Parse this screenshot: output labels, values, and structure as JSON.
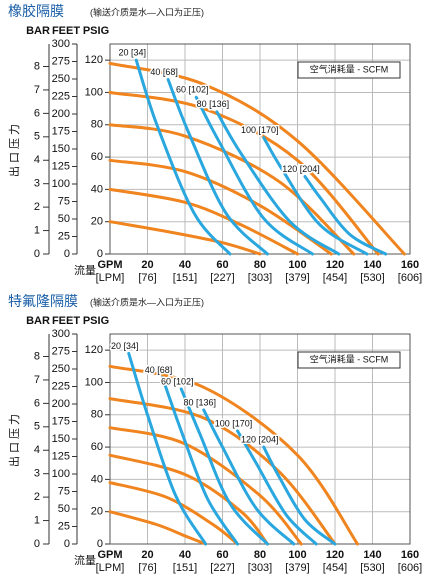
{
  "chart_data": [
    {
      "type": "line",
      "title": "橡胶隔膜",
      "subtitle": "(输送介质是水—入口为正压)",
      "y_axis_label": "出口压力",
      "x_axis_label": "流量",
      "x_unit": "GPM",
      "x2_unit": "[LPM]",
      "legend_title": "空气消耗量 - SCFM",
      "y_bar": {
        "label": "BAR",
        "lim": [
          0,
          8.96
        ],
        "ticks": [
          0,
          1,
          2,
          3,
          4,
          5,
          6,
          7,
          8
        ]
      },
      "y_feet": {
        "label": "FEET",
        "lim": [
          0,
          300
        ],
        "ticks": [
          0,
          25,
          50,
          75,
          100,
          125,
          150,
          175,
          200,
          225,
          250,
          275,
          300
        ]
      },
      "y_label": "PSIG",
      "ylim": [
        0,
        130
      ],
      "yticks": [
        0,
        20,
        40,
        60,
        80,
        100,
        120
      ],
      "xlim": [
        0,
        160
      ],
      "xticks": [
        20,
        40,
        60,
        80,
        100,
        120,
        140,
        160
      ],
      "x2ticks": [
        {
          "value": 20,
          "label": "[76]"
        },
        {
          "value": 40,
          "label": "[151]"
        },
        {
          "value": 60,
          "label": "[227]"
        },
        {
          "value": 80,
          "label": "[303]"
        },
        {
          "value": 100,
          "label": "[379]"
        },
        {
          "value": 120,
          "label": "[454]"
        },
        {
          "value": 140,
          "label": "[530]"
        },
        {
          "value": 160,
          "label": "[606]"
        }
      ],
      "series": [
        {
          "color": "#f0841e",
          "x": [
            0,
            50,
            100,
            157
          ],
          "values": [
            118,
            105,
            70,
            0
          ]
        },
        {
          "color": "#f0841e",
          "x": [
            0,
            50,
            100,
            143
          ],
          "values": [
            100,
            90,
            58,
            0
          ]
        },
        {
          "color": "#f0841e",
          "x": [
            0,
            40,
            90,
            130
          ],
          "values": [
            80,
            73,
            45,
            0
          ]
        },
        {
          "color": "#f0841e",
          "x": [
            0,
            40,
            80,
            118
          ],
          "values": [
            58,
            51,
            30,
            0
          ]
        },
        {
          "color": "#f0841e",
          "x": [
            0,
            40,
            70,
            100
          ],
          "values": [
            40,
            32,
            18,
            0
          ]
        },
        {
          "color": "#f0841e",
          "x": [
            0,
            30,
            60,
            80
          ],
          "values": [
            20,
            14,
            7,
            0
          ]
        },
        {
          "name": "20 [34]",
          "color": "#2aa7de",
          "x": [
            14,
            25,
            45,
            64
          ],
          "values": [
            120,
            80,
            25,
            0
          ]
        },
        {
          "name": "40 [68]",
          "color": "#2aa7de",
          "x": [
            31,
            42,
            62,
            84
          ],
          "values": [
            108,
            75,
            25,
            0
          ]
        },
        {
          "name": "60 [102]",
          "color": "#2aa7de",
          "x": [
            46,
            58,
            82,
            108
          ],
          "values": [
            97,
            70,
            22,
            0
          ]
        },
        {
          "name": "80 [136]",
          "color": "#2aa7de",
          "x": [
            57,
            70,
            96,
            122
          ],
          "values": [
            88,
            62,
            20,
            0
          ]
        },
        {
          "name": "100 [170]",
          "color": "#2aa7de",
          "x": [
            82,
            92,
            112,
            137
          ],
          "values": [
            72,
            52,
            18,
            0
          ]
        },
        {
          "name": "120 [204]",
          "color": "#2aa7de",
          "x": [
            104,
            112,
            128,
            147
          ],
          "values": [
            48,
            35,
            12,
            0
          ]
        }
      ]
    },
    {
      "type": "line",
      "title": "特氟隆隔膜",
      "subtitle": "(输送介质是水—入口为正压)",
      "y_axis_label": "出口压力",
      "x_axis_label": "流量",
      "x_unit": "GPM",
      "x2_unit": "[LPM]",
      "legend_title": "空气消耗量 - SCFM",
      "y_bar": {
        "label": "BAR",
        "lim": [
          0,
          8.96
        ],
        "ticks": [
          0,
          1,
          2,
          3,
          4,
          5,
          6,
          7,
          8
        ]
      },
      "y_feet": {
        "label": "FEET",
        "lim": [
          0,
          300
        ],
        "ticks": [
          0,
          25,
          50,
          75,
          100,
          125,
          150,
          175,
          200,
          225,
          250,
          275,
          300
        ]
      },
      "y_label": "PSIG",
      "ylim": [
        0,
        130
      ],
      "yticks": [
        0,
        20,
        40,
        60,
        80,
        100,
        120
      ],
      "xlim": [
        0,
        160
      ],
      "xticks": [
        20,
        40,
        60,
        80,
        100,
        120,
        140,
        160
      ],
      "x2ticks": [
        {
          "value": 20,
          "label": "[76]"
        },
        {
          "value": 40,
          "label": "[151]"
        },
        {
          "value": 60,
          "label": "[227]"
        },
        {
          "value": 80,
          "label": "[303]"
        },
        {
          "value": 100,
          "label": "[379]"
        },
        {
          "value": 120,
          "label": "[454]"
        },
        {
          "value": 140,
          "label": "[530]"
        },
        {
          "value": 160,
          "label": "[606]"
        }
      ],
      "series": [
        {
          "color": "#f0841e",
          "x": [
            0,
            50,
            100,
            132
          ],
          "values": [
            110,
            97,
            55,
            0
          ]
        },
        {
          "color": "#f0841e",
          "x": [
            0,
            50,
            90,
            120
          ],
          "values": [
            90,
            78,
            45,
            0
          ]
        },
        {
          "color": "#f0841e",
          "x": [
            0,
            40,
            80,
            102
          ],
          "values": [
            72,
            62,
            30,
            0
          ]
        },
        {
          "color": "#f0841e",
          "x": [
            0,
            40,
            70,
            84
          ],
          "values": [
            55,
            43,
            20,
            0
          ]
        },
        {
          "color": "#f0841e",
          "x": [
            0,
            30,
            55,
            68
          ],
          "values": [
            38,
            29,
            12,
            0
          ]
        },
        {
          "color": "#f0841e",
          "x": [
            0,
            25,
            40,
            51
          ],
          "values": [
            20,
            12,
            5,
            0
          ]
        },
        {
          "name": "20 [34]",
          "color": "#2aa7de",
          "x": [
            10,
            20,
            35,
            51
          ],
          "values": [
            118,
            80,
            30,
            0
          ]
        },
        {
          "name": "40 [68]",
          "color": "#2aa7de",
          "x": [
            28,
            38,
            52,
            68
          ],
          "values": [
            103,
            70,
            28,
            0
          ]
        },
        {
          "name": "60 [102]",
          "color": "#2aa7de",
          "x": [
            38,
            48,
            64,
            84
          ],
          "values": [
            96,
            68,
            25,
            0
          ]
        },
        {
          "name": "80 [136]",
          "color": "#2aa7de",
          "x": [
            50,
            60,
            78,
            98
          ],
          "values": [
            83,
            60,
            22,
            0
          ]
        },
        {
          "name": "100 [170]",
          "color": "#2aa7de",
          "x": [
            68,
            78,
            94,
            110
          ],
          "values": [
            70,
            50,
            18,
            0
          ]
        },
        {
          "name": "120 [204]",
          "color": "#2aa7de",
          "x": [
            82,
            90,
            104,
            120
          ],
          "values": [
            60,
            42,
            15,
            0
          ]
        }
      ]
    }
  ]
}
